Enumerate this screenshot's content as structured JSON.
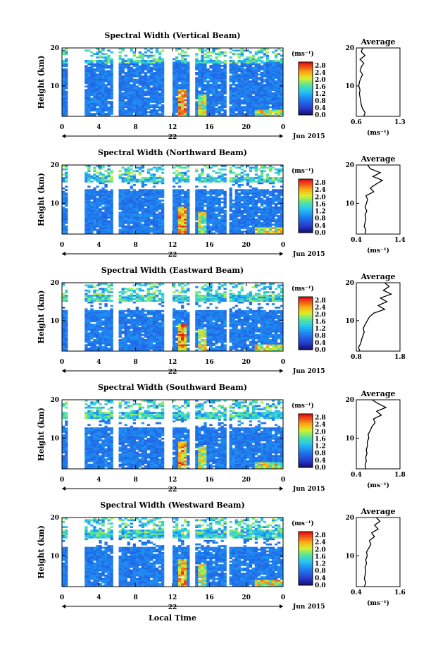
{
  "figure": {
    "xlabel": "Local Time",
    "ylabel": "Height (km)",
    "unit_label": "(ms⁻¹)",
    "average_title": "Average",
    "day_label": "22",
    "month_label": "Jun 2015",
    "colorbar_ticks": [
      "2.8",
      "2.4",
      "2.0",
      "1.6",
      "1.2",
      "0.8",
      "0.4",
      "0.0"
    ]
  },
  "chart_data": [
    {
      "type": "heatmap",
      "title": "Spectral Width (Vertical Beam)",
      "xlim": [
        0,
        24
      ],
      "ylim": [
        2,
        20
      ],
      "x_ticks": [
        "0",
        "4",
        "8",
        "12",
        "16",
        "20",
        "0"
      ],
      "y_ticks": [
        "20",
        "10"
      ],
      "data_gaps_hours": [
        [
          0.6,
          2.5
        ],
        [
          5.5,
          6.0
        ],
        [
          11.2,
          12.0
        ],
        [
          13.8,
          14.5
        ],
        [
          17.8,
          18.2
        ]
      ],
      "upper_gap_km": 0,
      "colorbar_range": [
        0,
        3.0
      ],
      "average_profile": {
        "xlim": [
          0.6,
          1.3
        ],
        "x_ticks": [
          "0.6",
          "1.3"
        ],
        "y_ticks": [
          "20",
          "10"
        ],
        "x_label": "(ms⁻¹)",
        "heights_km": [
          2,
          3,
          4,
          5,
          6,
          7,
          8,
          9,
          10,
          11,
          12,
          13,
          14,
          15,
          16,
          17,
          18,
          19,
          20
        ],
        "values": [
          0.72,
          0.74,
          0.7,
          0.68,
          0.67,
          0.66,
          0.65,
          0.66,
          0.64,
          0.65,
          0.67,
          0.7,
          0.66,
          0.68,
          0.72,
          0.66,
          0.74,
          0.68,
          0.7
        ]
      }
    },
    {
      "type": "heatmap",
      "title": "Spectral Width (Northward Beam)",
      "xlim": [
        0,
        24
      ],
      "ylim": [
        2,
        20
      ],
      "x_ticks": [
        "0",
        "4",
        "8",
        "12",
        "16",
        "20",
        "0"
      ],
      "y_ticks": [
        "20",
        "10"
      ],
      "data_gaps_hours": [
        [
          0.6,
          2.5
        ],
        [
          5.5,
          6.0
        ],
        [
          11.2,
          12.0
        ],
        [
          13.8,
          14.5
        ],
        [
          17.8,
          18.2
        ]
      ],
      "upper_gap_km": 13.5,
      "colorbar_range": [
        0,
        3.0
      ],
      "average_profile": {
        "xlim": [
          0.4,
          1.4
        ],
        "x_ticks": [
          "0.4",
          "1.4"
        ],
        "y_ticks": [
          "20",
          "10"
        ],
        "x_label": "(ms⁻¹)",
        "heights_km": [
          2,
          3,
          4,
          5,
          6,
          7,
          8,
          9,
          10,
          11,
          12,
          13,
          14,
          15,
          16,
          17,
          18,
          19,
          20
        ],
        "values": [
          0.6,
          0.62,
          0.58,
          0.6,
          0.62,
          0.6,
          0.64,
          0.6,
          0.63,
          0.66,
          0.62,
          0.8,
          0.72,
          0.85,
          1.0,
          0.78,
          0.95,
          0.72,
          0.66
        ]
      }
    },
    {
      "type": "heatmap",
      "title": "Spectral Width (Eastward Beam)",
      "xlim": [
        0,
        24
      ],
      "ylim": [
        2,
        20
      ],
      "x_ticks": [
        "0",
        "4",
        "8",
        "12",
        "16",
        "20",
        "0"
      ],
      "y_ticks": [
        "20",
        "10"
      ],
      "data_gaps_hours": [
        [
          0.6,
          2.5
        ],
        [
          5.5,
          6.0
        ],
        [
          11.2,
          12.0
        ],
        [
          13.8,
          14.5
        ],
        [
          17.8,
          18.2
        ]
      ],
      "upper_gap_km": 13.0,
      "colorbar_range": [
        0,
        3.0
      ],
      "average_profile": {
        "xlim": [
          0.8,
          1.8
        ],
        "x_ticks": [
          "0.8",
          "1.8"
        ],
        "y_ticks": [
          "20",
          "10"
        ],
        "x_label": "",
        "heights_km": [
          2,
          3,
          4,
          5,
          6,
          7,
          8,
          9,
          10,
          11,
          12,
          13,
          14,
          15,
          16,
          17,
          18,
          19,
          20
        ],
        "values": [
          0.88,
          0.85,
          0.9,
          0.92,
          0.95,
          0.98,
          0.96,
          1.0,
          1.05,
          1.1,
          1.2,
          1.45,
          1.3,
          1.5,
          1.35,
          1.6,
          1.42,
          1.55,
          1.45
        ]
      }
    },
    {
      "type": "heatmap",
      "title": "Spectral Width (Southward Beam)",
      "xlim": [
        0,
        24
      ],
      "ylim": [
        2,
        20
      ],
      "x_ticks": [
        "0",
        "4",
        "8",
        "12",
        "16",
        "20",
        "0"
      ],
      "y_ticks": [
        "20",
        "10"
      ],
      "data_gaps_hours": [
        [
          0.6,
          2.5
        ],
        [
          5.5,
          6.0
        ],
        [
          11.2,
          12.0
        ],
        [
          13.8,
          14.5
        ],
        [
          17.8,
          18.2
        ]
      ],
      "upper_gap_km": 13.0,
      "colorbar_range": [
        0,
        3.0
      ],
      "average_profile": {
        "xlim": [
          0.4,
          1.8
        ],
        "x_ticks": [
          "0.4",
          "1.8"
        ],
        "y_ticks": [
          "20",
          "10"
        ],
        "x_label": "(ms⁻¹)",
        "heights_km": [
          2,
          3,
          4,
          5,
          6,
          7,
          8,
          9,
          10,
          11,
          12,
          13,
          14,
          15,
          16,
          17,
          18,
          19,
          20
        ],
        "values": [
          0.7,
          0.68,
          0.72,
          0.7,
          0.74,
          0.72,
          0.76,
          0.75,
          0.8,
          0.78,
          0.85,
          0.9,
          1.0,
          0.95,
          1.2,
          1.05,
          1.35,
          1.1,
          0.9
        ]
      }
    },
    {
      "type": "heatmap",
      "title": "Spectral Width (Westward Beam)",
      "xlim": [
        0,
        24
      ],
      "ylim": [
        2,
        20
      ],
      "x_ticks": [
        "0",
        "4",
        "8",
        "12",
        "16",
        "20",
        "0"
      ],
      "y_ticks": [
        "20",
        "10"
      ],
      "data_gaps_hours": [
        [
          0.6,
          2.5
        ],
        [
          5.5,
          6.0
        ],
        [
          11.2,
          12.0
        ],
        [
          13.8,
          14.5
        ],
        [
          17.8,
          18.2
        ]
      ],
      "upper_gap_km": 12.5,
      "colorbar_range": [
        0,
        3.0
      ],
      "average_profile": {
        "xlim": [
          0.4,
          1.6
        ],
        "x_ticks": [
          "0.4",
          "1.6"
        ],
        "y_ticks": [
          "20",
          "10"
        ],
        "x_label": "(ms⁻¹)",
        "heights_km": [
          2,
          3,
          4,
          5,
          6,
          7,
          8,
          9,
          10,
          11,
          12,
          13,
          14,
          15,
          16,
          17,
          18,
          19,
          20
        ],
        "values": [
          0.62,
          0.66,
          0.62,
          0.64,
          0.66,
          0.64,
          0.68,
          0.66,
          0.7,
          0.68,
          0.74,
          0.8,
          0.76,
          0.9,
          0.82,
          1.0,
          0.9,
          1.05,
          0.95
        ]
      }
    }
  ]
}
